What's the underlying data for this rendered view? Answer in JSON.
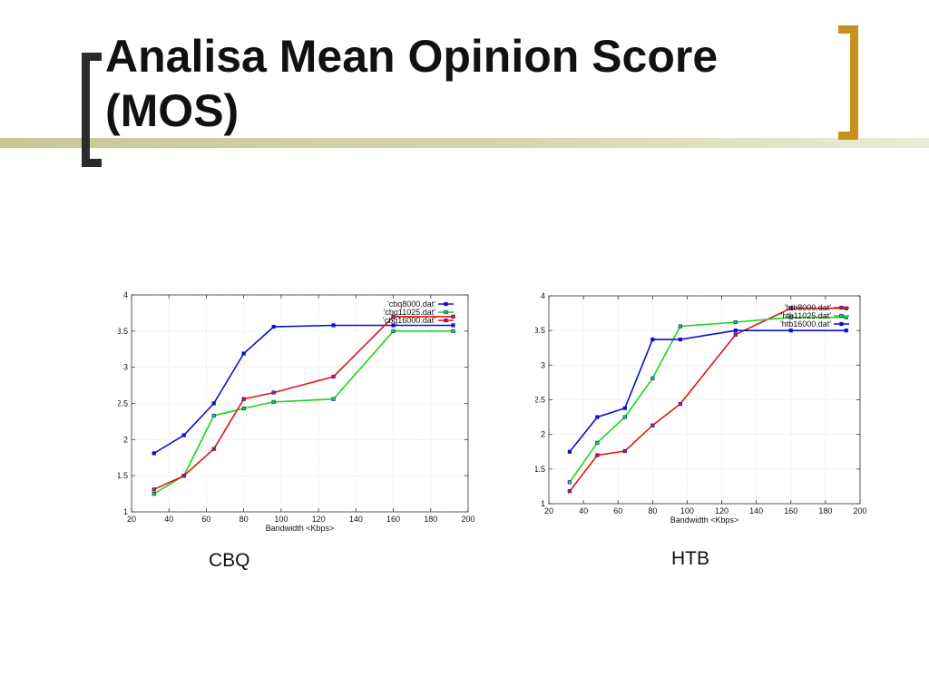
{
  "slide": {
    "title": "Analisa Mean Opinion Score (MOS)",
    "colors": {
      "bracket_left": "#2b2b2b",
      "bracket_right": "#c6921c",
      "accent_bar": "#c7c894"
    }
  },
  "captions": {
    "cbq": "CBQ",
    "htb": "HTB"
  },
  "chart_data": [
    {
      "type": "line",
      "title": "",
      "xlabel": "Bandwidth <Kbps>",
      "ylabel": "",
      "xlim": [
        20,
        200
      ],
      "ylim": [
        1,
        4
      ],
      "xticks": [
        20,
        40,
        60,
        80,
        100,
        120,
        140,
        160,
        180,
        200
      ],
      "yticks": [
        1,
        1.5,
        2,
        2.5,
        3,
        3.5,
        4
      ],
      "grid": true,
      "legend_position": "top-right",
      "series": [
        {
          "name": "'cbq8000.dat'",
          "color": "#0a10d0",
          "x": [
            32,
            48,
            64,
            80,
            96,
            128,
            160,
            192
          ],
          "y": [
            1.81,
            2.06,
            2.5,
            3.19,
            3.56,
            3.58,
            3.58,
            3.58
          ]
        },
        {
          "name": "'cbq11025.dat'",
          "color": "#1bd61b",
          "x": [
            32,
            48,
            64,
            80,
            96,
            128,
            160,
            192
          ],
          "y": [
            1.25,
            1.5,
            2.33,
            2.43,
            2.52,
            2.56,
            3.5,
            3.5
          ]
        },
        {
          "name": "'cbq16000.dat'",
          "color": "#e01414",
          "x": [
            32,
            48,
            64,
            80,
            96,
            128,
            160,
            192
          ],
          "y": [
            1.31,
            1.5,
            1.87,
            2.56,
            2.65,
            2.87,
            3.7,
            3.7
          ]
        }
      ]
    },
    {
      "type": "line",
      "title": "",
      "xlabel": "Bandwidth <Kbps>",
      "ylabel": "",
      "xlim": [
        20,
        200
      ],
      "ylim": [
        1,
        4
      ],
      "xticks": [
        20,
        40,
        60,
        80,
        100,
        120,
        140,
        160,
        180,
        200
      ],
      "yticks": [
        1,
        1.5,
        2,
        2.5,
        3,
        3.5,
        4
      ],
      "grid": true,
      "legend_position": "top-right",
      "series": [
        {
          "name": "'htb8000.dat'",
          "color": "#e01414",
          "x": [
            32,
            48,
            64,
            80,
            96,
            128,
            160,
            192
          ],
          "y": [
            1.18,
            1.7,
            1.76,
            2.13,
            2.44,
            3.44,
            3.82,
            3.82
          ]
        },
        {
          "name": "'htb11025.dat'",
          "color": "#1bd61b",
          "x": [
            32,
            48,
            64,
            80,
            96,
            128,
            160,
            192
          ],
          "y": [
            1.31,
            1.88,
            2.25,
            2.81,
            3.56,
            3.62,
            3.69,
            3.69
          ]
        },
        {
          "name": "'htb16000.dat'",
          "color": "#0a10d0",
          "x": [
            32,
            48,
            64,
            80,
            96,
            128,
            160,
            192
          ],
          "y": [
            1.75,
            2.25,
            2.38,
            3.37,
            3.37,
            3.5,
            3.5,
            3.5
          ]
        }
      ]
    }
  ]
}
